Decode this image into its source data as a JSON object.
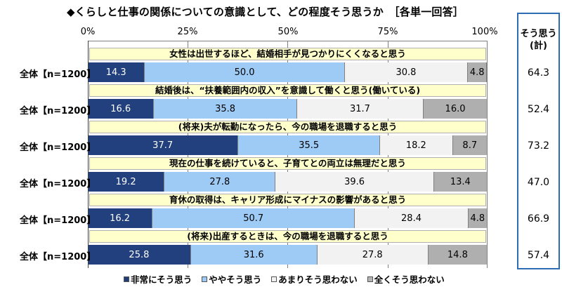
{
  "header": {
    "title": "◆くらしと仕事の関係についての意識として、どの程度そう思うか　［各単一回答］"
  },
  "axis": {
    "ticks": [
      "0%",
      "25%",
      "50%",
      "75%",
      "100%"
    ]
  },
  "legend": {
    "items": [
      {
        "label": "非常にそう思う",
        "color": "#1f3d7a"
      },
      {
        "label": "ややそう思う",
        "color": "#9dcbf5"
      },
      {
        "label": "あまりそう思わない",
        "color": "#f2f2f2"
      },
      {
        "label": "全くそう思わない",
        "color": "#b4b4b4"
      }
    ]
  },
  "total_panel": {
    "header_line1": "そう思う",
    "header_line2": "(計)",
    "values": [
      "64.3",
      "52.4",
      "73.2",
      "47.0",
      "66.9",
      "57.4"
    ]
  },
  "rows": [
    {
      "question": "女性は出世するほど、結婚相手が見つかりにくくなると思う",
      "group": "全体【n=1200】",
      "values": [
        "14.3",
        "50.0",
        "30.8",
        "4.8"
      ]
    },
    {
      "question": "結婚後は、“扶養範囲内の収入”を意識して働くと思う(働いている)",
      "group": "全体【n=1200】",
      "values": [
        "16.6",
        "35.8",
        "31.7",
        "16.0"
      ]
    },
    {
      "question": "(将来)夫が転勤になったら、今の職場を退職すると思う",
      "group": "全体【n=1200】",
      "values": [
        "37.7",
        "35.5",
        "18.2",
        "8.7"
      ]
    },
    {
      "question": "現在の仕事を続けていると、子育てとの両立は無理だと思う",
      "group": "全体【n=1200】",
      "values": [
        "19.2",
        "27.8",
        "39.6",
        "13.4"
      ]
    },
    {
      "question": "育休の取得は、キャリア形成にマイナスの影響があると思う",
      "group": "全体【n=1200】",
      "values": [
        "16.2",
        "50.7",
        "28.4",
        "4.8"
      ]
    },
    {
      "question": "(将来)出産するときは、今の職場を退職すると思う",
      "group": "全体【n=1200】",
      "values": [
        "25.8",
        "31.6",
        "27.8",
        "14.8"
      ]
    }
  ],
  "chart_data": {
    "type": "bar",
    "orientation": "horizontal",
    "stacked": true,
    "title": "◆くらしと仕事の関係についての意識として、どの程度そう思うか　［各単一回答］",
    "xlabel": "",
    "ylabel": "",
    "xlim": [
      0,
      100
    ],
    "x_ticks": [
      "0%",
      "25%",
      "50%",
      "75%",
      "100%"
    ],
    "grid": true,
    "legend_position": "bottom",
    "categories": [
      "女性は出世するほど、結婚相手が見つかりにくくなると思う",
      "結婚後は、“扶養範囲内の収入”を意識して働くと思う(働いている)",
      "(将来)夫が転勤になったら、今の職場を退職すると思う",
      "現在の仕事を続けていると、子育てとの両立は無理だと思う",
      "育休の取得は、キャリア形成にマイナスの影響があると思う",
      "(将来)出産するときは、今の職場を退職すると思う"
    ],
    "group_label": "全体【n=1200】",
    "series": [
      {
        "name": "非常にそう思う",
        "color": "#1f3d7a",
        "values": [
          14.3,
          16.6,
          37.7,
          19.2,
          16.2,
          25.8
        ]
      },
      {
        "name": "ややそう思う",
        "color": "#9dcbf5",
        "values": [
          50.0,
          35.8,
          35.5,
          27.8,
          50.7,
          31.6
        ]
      },
      {
        "name": "あまりそう思わない",
        "color": "#f2f2f2",
        "values": [
          30.8,
          31.7,
          18.2,
          39.6,
          28.4,
          27.8
        ]
      },
      {
        "name": "全くそう思わない",
        "color": "#b4b4b4",
        "values": [
          4.8,
          16.0,
          8.7,
          13.4,
          4.8,
          14.8
        ]
      }
    ],
    "side_totals": {
      "label": "そう思う(計)",
      "values": [
        64.3,
        52.4,
        73.2,
        47.0,
        66.9,
        57.4
      ]
    }
  }
}
